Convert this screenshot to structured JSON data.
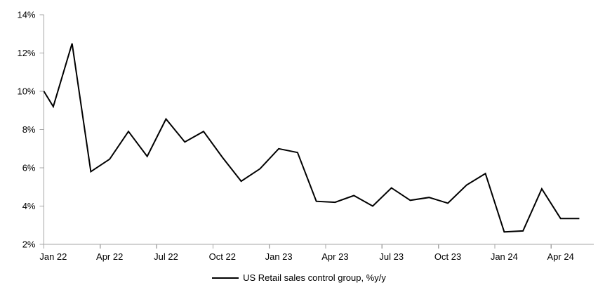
{
  "chart_data": {
    "type": "line",
    "title": "",
    "legend": "US Retail sales control group, %y/y",
    "x": [
      "Jan 22",
      "Feb 22",
      "Mar 22",
      "Apr 22",
      "May 22",
      "Jun 22",
      "Jul 22",
      "Aug 22",
      "Sep 22",
      "Oct 22",
      "Nov 22",
      "Dec 22",
      "Jan 23",
      "Feb 23",
      "Mar 23",
      "Apr 23",
      "May 23",
      "Jun 23",
      "Jul 23",
      "Aug 23",
      "Sep 23",
      "Oct 23",
      "Nov 23",
      "Dec 23",
      "Jan 24",
      "Feb 24",
      "Mar 24",
      "Apr 24",
      "May 24"
    ],
    "values": [
      9.2,
      12.5,
      5.8,
      6.45,
      7.9,
      6.6,
      8.55,
      7.35,
      7.9,
      6.55,
      5.3,
      5.95,
      7.0,
      6.8,
      4.25,
      4.2,
      4.55,
      4.0,
      4.95,
      4.3,
      4.45,
      4.15,
      5.1,
      5.7,
      2.65,
      2.7,
      4.9,
      3.35,
      3.35
    ],
    "left_edge_value": 10.0,
    "ylim": [
      2,
      14
    ],
    "y_tick_step": 2,
    "y_tick_labels": [
      "2%",
      "4%",
      "6%",
      "8%",
      "10%",
      "12%",
      "14%"
    ],
    "x_tick_labels": [
      "Jan 22",
      "Apr 22",
      "Jul 22",
      "Oct 22",
      "Jan 23",
      "Apr 23",
      "Jul 23",
      "Oct 23",
      "Jan 24",
      "Apr 24"
    ],
    "x_tick_interval_months": 3,
    "grid": "off",
    "legend_position": "bottom-center",
    "colors": {
      "line": "#000000",
      "axis": "#a6a6a6",
      "text": "#000000",
      "background": "#ffffff"
    }
  }
}
